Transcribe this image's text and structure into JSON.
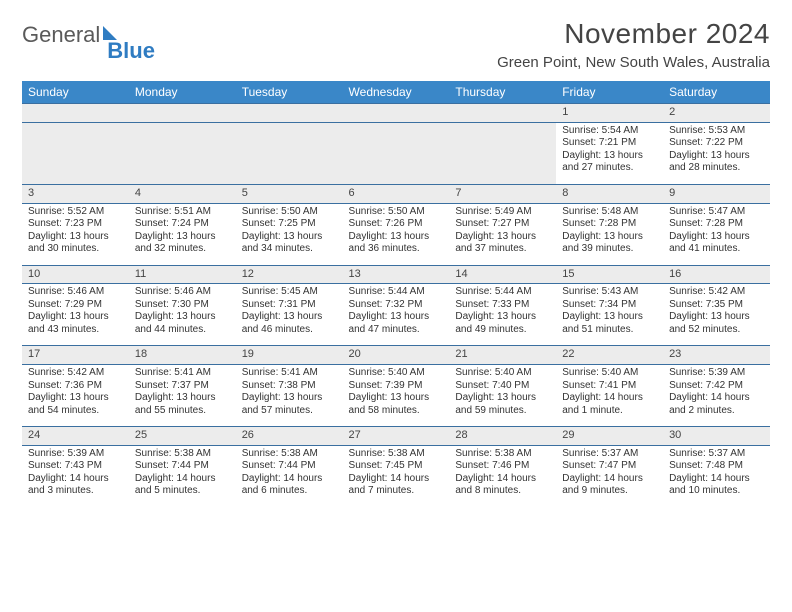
{
  "logo": {
    "part1": "General",
    "part2": "Blue"
  },
  "header": {
    "month_title": "November 2024",
    "location": "Green Point, New South Wales, Australia"
  },
  "colors": {
    "header_bg": "#3a87c8",
    "header_text": "#ffffff",
    "row_sep": "#3a6fa0",
    "daynum_bg": "#ececec",
    "logo_gray": "#5a5a5a",
    "logo_blue": "#2f7cc2"
  },
  "weekdays": [
    "Sunday",
    "Monday",
    "Tuesday",
    "Wednesday",
    "Thursday",
    "Friday",
    "Saturday"
  ],
  "weeks": [
    [
      null,
      null,
      null,
      null,
      null,
      {
        "n": "1",
        "sr": "Sunrise: 5:54 AM",
        "ss": "Sunset: 7:21 PM",
        "dl": "Daylight: 13 hours and 27 minutes."
      },
      {
        "n": "2",
        "sr": "Sunrise: 5:53 AM",
        "ss": "Sunset: 7:22 PM",
        "dl": "Daylight: 13 hours and 28 minutes."
      }
    ],
    [
      {
        "n": "3",
        "sr": "Sunrise: 5:52 AM",
        "ss": "Sunset: 7:23 PM",
        "dl": "Daylight: 13 hours and 30 minutes."
      },
      {
        "n": "4",
        "sr": "Sunrise: 5:51 AM",
        "ss": "Sunset: 7:24 PM",
        "dl": "Daylight: 13 hours and 32 minutes."
      },
      {
        "n": "5",
        "sr": "Sunrise: 5:50 AM",
        "ss": "Sunset: 7:25 PM",
        "dl": "Daylight: 13 hours and 34 minutes."
      },
      {
        "n": "6",
        "sr": "Sunrise: 5:50 AM",
        "ss": "Sunset: 7:26 PM",
        "dl": "Daylight: 13 hours and 36 minutes."
      },
      {
        "n": "7",
        "sr": "Sunrise: 5:49 AM",
        "ss": "Sunset: 7:27 PM",
        "dl": "Daylight: 13 hours and 37 minutes."
      },
      {
        "n": "8",
        "sr": "Sunrise: 5:48 AM",
        "ss": "Sunset: 7:28 PM",
        "dl": "Daylight: 13 hours and 39 minutes."
      },
      {
        "n": "9",
        "sr": "Sunrise: 5:47 AM",
        "ss": "Sunset: 7:28 PM",
        "dl": "Daylight: 13 hours and 41 minutes."
      }
    ],
    [
      {
        "n": "10",
        "sr": "Sunrise: 5:46 AM",
        "ss": "Sunset: 7:29 PM",
        "dl": "Daylight: 13 hours and 43 minutes."
      },
      {
        "n": "11",
        "sr": "Sunrise: 5:46 AM",
        "ss": "Sunset: 7:30 PM",
        "dl": "Daylight: 13 hours and 44 minutes."
      },
      {
        "n": "12",
        "sr": "Sunrise: 5:45 AM",
        "ss": "Sunset: 7:31 PM",
        "dl": "Daylight: 13 hours and 46 minutes."
      },
      {
        "n": "13",
        "sr": "Sunrise: 5:44 AM",
        "ss": "Sunset: 7:32 PM",
        "dl": "Daylight: 13 hours and 47 minutes."
      },
      {
        "n": "14",
        "sr": "Sunrise: 5:44 AM",
        "ss": "Sunset: 7:33 PM",
        "dl": "Daylight: 13 hours and 49 minutes."
      },
      {
        "n": "15",
        "sr": "Sunrise: 5:43 AM",
        "ss": "Sunset: 7:34 PM",
        "dl": "Daylight: 13 hours and 51 minutes."
      },
      {
        "n": "16",
        "sr": "Sunrise: 5:42 AM",
        "ss": "Sunset: 7:35 PM",
        "dl": "Daylight: 13 hours and 52 minutes."
      }
    ],
    [
      {
        "n": "17",
        "sr": "Sunrise: 5:42 AM",
        "ss": "Sunset: 7:36 PM",
        "dl": "Daylight: 13 hours and 54 minutes."
      },
      {
        "n": "18",
        "sr": "Sunrise: 5:41 AM",
        "ss": "Sunset: 7:37 PM",
        "dl": "Daylight: 13 hours and 55 minutes."
      },
      {
        "n": "19",
        "sr": "Sunrise: 5:41 AM",
        "ss": "Sunset: 7:38 PM",
        "dl": "Daylight: 13 hours and 57 minutes."
      },
      {
        "n": "20",
        "sr": "Sunrise: 5:40 AM",
        "ss": "Sunset: 7:39 PM",
        "dl": "Daylight: 13 hours and 58 minutes."
      },
      {
        "n": "21",
        "sr": "Sunrise: 5:40 AM",
        "ss": "Sunset: 7:40 PM",
        "dl": "Daylight: 13 hours and 59 minutes."
      },
      {
        "n": "22",
        "sr": "Sunrise: 5:40 AM",
        "ss": "Sunset: 7:41 PM",
        "dl": "Daylight: 14 hours and 1 minute."
      },
      {
        "n": "23",
        "sr": "Sunrise: 5:39 AM",
        "ss": "Sunset: 7:42 PM",
        "dl": "Daylight: 14 hours and 2 minutes."
      }
    ],
    [
      {
        "n": "24",
        "sr": "Sunrise: 5:39 AM",
        "ss": "Sunset: 7:43 PM",
        "dl": "Daylight: 14 hours and 3 minutes."
      },
      {
        "n": "25",
        "sr": "Sunrise: 5:38 AM",
        "ss": "Sunset: 7:44 PM",
        "dl": "Daylight: 14 hours and 5 minutes."
      },
      {
        "n": "26",
        "sr": "Sunrise: 5:38 AM",
        "ss": "Sunset: 7:44 PM",
        "dl": "Daylight: 14 hours and 6 minutes."
      },
      {
        "n": "27",
        "sr": "Sunrise: 5:38 AM",
        "ss": "Sunset: 7:45 PM",
        "dl": "Daylight: 14 hours and 7 minutes."
      },
      {
        "n": "28",
        "sr": "Sunrise: 5:38 AM",
        "ss": "Sunset: 7:46 PM",
        "dl": "Daylight: 14 hours and 8 minutes."
      },
      {
        "n": "29",
        "sr": "Sunrise: 5:37 AM",
        "ss": "Sunset: 7:47 PM",
        "dl": "Daylight: 14 hours and 9 minutes."
      },
      {
        "n": "30",
        "sr": "Sunrise: 5:37 AM",
        "ss": "Sunset: 7:48 PM",
        "dl": "Daylight: 14 hours and 10 minutes."
      }
    ]
  ]
}
